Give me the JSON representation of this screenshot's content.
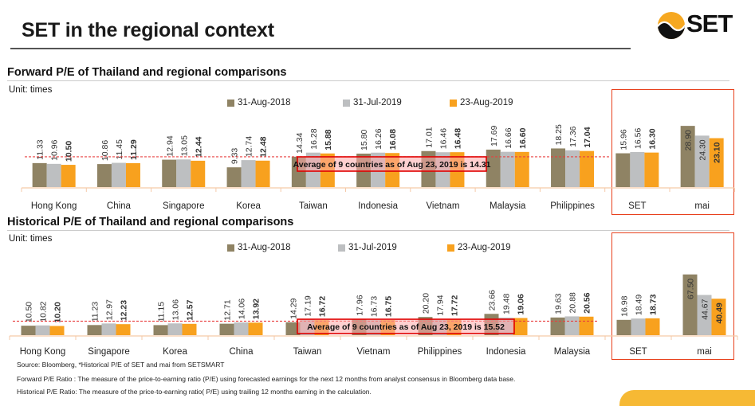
{
  "page": {
    "title": "SET in the regional context",
    "logo_text": "SET",
    "logo_icon": "set-sun-wave-logo-icon",
    "colors": {
      "series_2018": "#8f8364",
      "series_jul2019": "#bdbfc1",
      "series_aug2019": "#f8a11e",
      "avg_line": "#e84040",
      "highlight_box": "#e8401c",
      "footer_band": "#f6b934"
    }
  },
  "forward": {
    "section_title": "Forward P/E of Thailand and regional comparisons",
    "unit": "Unit: times",
    "legend": [
      "31-Aug-2018",
      "31-Jul-2019",
      "23-Aug-2019"
    ],
    "average_label": "Average of 9 countries as of  Aug 23, 2019 is 14.31"
  },
  "historical": {
    "section_title": "Historical P/E of Thailand and regional comparisons",
    "unit": "Unit: times",
    "legend": [
      "31-Aug-2018",
      "31-Jul-2019",
      "23-Aug-2019"
    ],
    "average_label": "Average of 9 countries as of Aug 23, 2019 is 15.52"
  },
  "chart_data": [
    {
      "type": "bar",
      "title": "Forward P/E of Thailand and regional comparisons",
      "ylabel": "times",
      "categories": [
        "Hong Kong",
        "China",
        "Singapore",
        "Korea",
        "Taiwan",
        "Indonesia",
        "Vietnam",
        "Malaysia",
        "Philippines",
        "SET",
        "mai"
      ],
      "series": [
        {
          "name": "31-Aug-2018",
          "values": [
            11.33,
            10.86,
            12.94,
            9.33,
            14.34,
            15.8,
            17.01,
            17.69,
            18.25,
            15.96,
            28.9
          ]
        },
        {
          "name": "31-Jul-2019",
          "values": [
            10.96,
            11.45,
            13.05,
            12.74,
            16.28,
            16.26,
            16.46,
            16.66,
            17.36,
            16.56,
            24.3
          ]
        },
        {
          "name": "23-Aug-2019",
          "values": [
            10.5,
            11.29,
            12.44,
            12.48,
            15.88,
            16.08,
            16.48,
            16.6,
            17.04,
            16.3,
            23.1
          ]
        }
      ],
      "average": 14.31,
      "highlighted_categories": [
        "SET",
        "mai"
      ],
      "legend_position": "top-center",
      "grid": false
    },
    {
      "type": "bar",
      "title": "Historical P/E of Thailand and regional comparisons",
      "ylabel": "times",
      "categories": [
        "Hong Kong",
        "Singapore",
        "Korea",
        "China",
        "Taiwan",
        "Vietnam",
        "Philippines",
        "Indonesia",
        "Malaysia",
        "SET",
        "mai"
      ],
      "series": [
        {
          "name": "31-Aug-2018",
          "values": [
            10.5,
            11.23,
            11.15,
            12.71,
            14.29,
            17.96,
            20.2,
            23.66,
            19.63,
            16.98,
            67.5
          ]
        },
        {
          "name": "31-Jul-2019",
          "values": [
            10.82,
            12.97,
            13.06,
            14.06,
            17.19,
            16.73,
            17.94,
            19.48,
            20.88,
            18.49,
            44.67
          ]
        },
        {
          "name": "23-Aug-2019",
          "values": [
            10.2,
            12.23,
            12.57,
            13.92,
            16.72,
            16.75,
            17.72,
            19.06,
            20.56,
            18.73,
            40.49
          ]
        }
      ],
      "average": 15.52,
      "highlighted_categories": [
        "SET",
        "mai"
      ],
      "legend_position": "top-center",
      "grid": false
    }
  ],
  "footnotes": {
    "source": "Source: Bloomberg, *Historical P/E of SET and mai from SETSMART",
    "forward_def": "Forward P/E Ratio : The measure of the price-to-earning ratio (P/E) using forecasted earnings for the next 12 months from analyst consensus in Bloomberg data base.",
    "historical_def": "Historical P/E Ratio: The measure of the price-to-earning ratio( P/E) using trailing 12 months earning in the calculation."
  }
}
